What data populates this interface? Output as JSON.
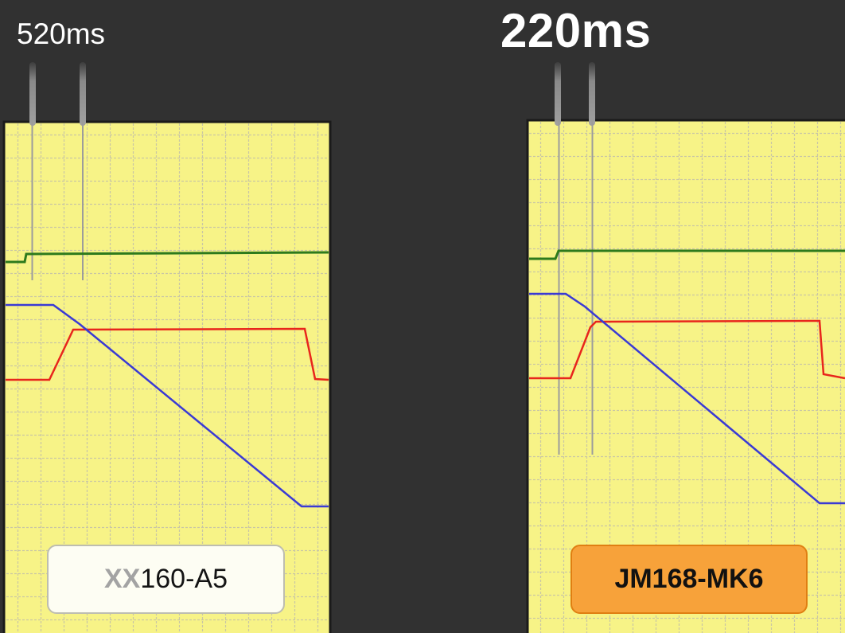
{
  "left_panel": {
    "timing_label": "520ms",
    "model_prefix": "XX",
    "model_suffix": "160-A5"
  },
  "right_panel": {
    "timing_label": "220ms",
    "model_label": "JM168-MK6"
  },
  "colors": {
    "background": "#313131",
    "scope_background": "#f7f387",
    "grid_line": "#c9c6a4",
    "trace_green": "#2d7a1c",
    "trace_red": "#e8261c",
    "trace_blue": "#3a3ad4",
    "marker_line": "#9c9c9c",
    "badge_highlight": "#f7a23a"
  },
  "chart_data": [
    {
      "type": "line",
      "series": [
        {
          "color": "green",
          "values": []
        },
        {
          "color": "red",
          "values": []
        },
        {
          "color": "blue",
          "values": []
        }
      ]
    },
    {
      "type": "line",
      "series": [
        {
          "color": "green",
          "values": []
        },
        {
          "color": "red",
          "values": []
        },
        {
          "color": "blue",
          "values": []
        }
      ]
    }
  ]
}
